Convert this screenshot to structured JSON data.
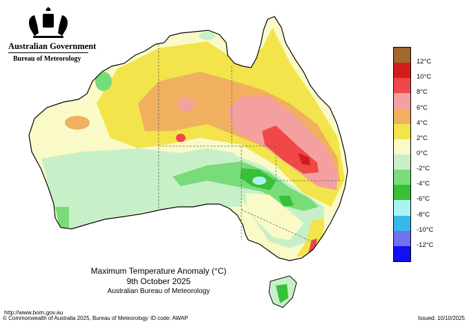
{
  "header": {
    "government": "Australian Government",
    "bureau": "Bureau of Meteorology"
  },
  "caption": {
    "title": "Maximum Temperature Anomaly (°C)",
    "date": "9th October 2025",
    "organisation": "Australian Bureau of Meteorology"
  },
  "footer": {
    "url": "http://www.bom.gov.au",
    "copyright": "© Commonwealth of Australia 2025, Bureau of Meteorology",
    "id_code": "ID code: AWAP",
    "issued": "Issued: 10/10/2025"
  },
  "legend": {
    "levels": [
      {
        "label": "12°C",
        "color": "#a0682c"
      },
      {
        "label": "10°C",
        "color": "#d41c1c"
      },
      {
        "label": "8°C",
        "color": "#f04848"
      },
      {
        "label": "6°C",
        "color": "#f4a0a0"
      },
      {
        "label": "4°C",
        "color": "#f0b060"
      },
      {
        "label": "2°C",
        "color": "#f2e44a"
      },
      {
        "label": "0°C",
        "color": "#fafac8"
      },
      {
        "label": "-2°C",
        "color": "#c8f0c8"
      },
      {
        "label": "-4°C",
        "color": "#78dc78"
      },
      {
        "label": "-6°C",
        "color": "#38c038"
      },
      {
        "label": "-8°C",
        "color": "#a8f4f4"
      },
      {
        "label": "-10°C",
        "color": "#38b8e8"
      },
      {
        "label": "-12°C",
        "color": "#7070f0"
      },
      {
        "label": "",
        "color": "#1010f0"
      }
    ]
  }
}
